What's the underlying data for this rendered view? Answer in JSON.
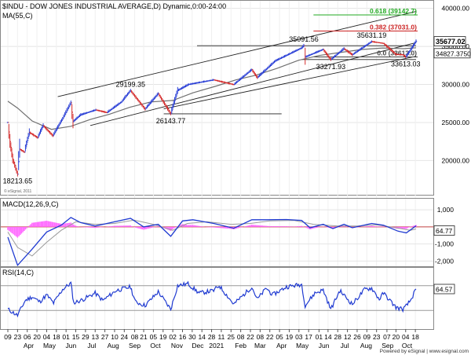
{
  "chart_data": [
    {
      "type": "line",
      "title": "$INDU - DOW JONES INDUSTRIAL AVERAGE,D) Dynamic,0:00-24:00",
      "overlay_label": "MA(55,C)",
      "watermark": "© eSignal, 2011",
      "ylim": [
        15500,
        41000
      ],
      "y_ticks": [
        20000,
        25000,
        30000,
        35000,
        40000
      ],
      "y_tick_labels": [
        "20000.00",
        "25000.00",
        "30000.00",
        "35000.00",
        "40000.00"
      ],
      "price_points": [
        [
          "2020-03-09",
          25000
        ],
        [
          "2020-03-12",
          22500
        ],
        [
          "2020-03-16",
          20200
        ],
        [
          "2020-03-23",
          18213.65
        ],
        [
          "2020-03-26",
          21500
        ],
        [
          "2020-04-02",
          21100
        ],
        [
          "2020-04-09",
          23700
        ],
        [
          "2020-04-21",
          23000
        ],
        [
          "2020-04-29",
          24600
        ],
        [
          "2020-05-13",
          23250
        ],
        [
          "2020-05-27",
          25500
        ],
        [
          "2020-06-08",
          27600
        ],
        [
          "2020-06-11",
          25100
        ],
        [
          "2020-06-22",
          26000
        ],
        [
          "2020-07-14",
          26650
        ],
        [
          "2020-07-30",
          26300
        ],
        [
          "2020-08-20",
          27700
        ],
        [
          "2020-09-02",
          29199.35
        ],
        [
          "2020-09-23",
          26750
        ],
        [
          "2020-10-12",
          28800
        ],
        [
          "2020-10-30",
          26143.77
        ],
        [
          "2020-11-09",
          29200
        ],
        [
          "2020-11-25",
          30000
        ],
        [
          "2020-12-31",
          30600
        ],
        [
          "2021-01-29",
          29980
        ],
        [
          "2021-02-24",
          31950
        ],
        [
          "2021-03-04",
          30900
        ],
        [
          "2021-03-30",
          33100
        ],
        [
          "2021-05-07",
          34800
        ],
        [
          "2021-05-10",
          35091.56
        ],
        [
          "2021-05-12",
          33600
        ],
        [
          "2021-06-07",
          34600
        ],
        [
          "2021-06-18",
          33271.93
        ],
        [
          "2021-07-07",
          34700
        ],
        [
          "2021-07-19",
          33900
        ],
        [
          "2021-08-16",
          35631.19
        ],
        [
          "2021-09-02",
          35400
        ],
        [
          "2021-09-20",
          33950
        ],
        [
          "2021-09-30",
          33900
        ],
        [
          "2021-10-04",
          33613.03
        ],
        [
          "2021-10-11",
          34500
        ],
        [
          "2021-10-19",
          35677.02
        ]
      ],
      "ma_points": [
        [
          "2020-03-09",
          27800
        ],
        [
          "2020-03-23",
          26900
        ],
        [
          "2020-04-13",
          25200
        ],
        [
          "2020-05-11",
          24100
        ],
        [
          "2020-06-08",
          24500
        ],
        [
          "2020-07-06",
          25400
        ],
        [
          "2020-08-03",
          26100
        ],
        [
          "2020-09-01",
          27000
        ],
        [
          "2020-10-01",
          27700
        ],
        [
          "2020-11-02",
          27900
        ],
        [
          "2020-12-01",
          28900
        ],
        [
          "2021-01-04",
          29800
        ],
        [
          "2021-02-01",
          30600
        ],
        [
          "2021-03-01",
          31200
        ],
        [
          "2021-04-01",
          32100
        ],
        [
          "2021-05-03",
          33200
        ],
        [
          "2021-06-01",
          33800
        ],
        [
          "2021-07-01",
          34200
        ],
        [
          "2021-08-02",
          34600
        ],
        [
          "2021-09-01",
          34800
        ],
        [
          "2021-10-01",
          34700
        ],
        [
          "2021-10-19",
          34827.38
        ]
      ],
      "trend_lines": [
        {
          "role": "channel-upper",
          "points": [
            [
              "2020-05-20",
              28400
            ],
            [
              "2021-10-19",
              39600
            ]
          ]
        },
        {
          "role": "channel-lower",
          "points": [
            [
              "2020-07-06",
              24600
            ],
            [
              "2021-10-19",
              35500
            ]
          ]
        },
        {
          "role": "channel-mid",
          "points": [
            [
              "2020-10-20",
              26800
            ],
            [
              "2021-10-19",
              33700
            ]
          ]
        },
        {
          "role": "horizontal",
          "points": [
            [
              "2020-10-20",
              26143.77
            ],
            [
              "2021-04-08",
              26143.77
            ]
          ]
        },
        {
          "role": "horizontal",
          "points": [
            [
              "2020-12-07",
              35091.56
            ],
            [
              "2021-10-19",
              35091.56
            ]
          ]
        },
        {
          "role": "horizontal",
          "points": [
            [
              "2021-05-07",
              33271.93
            ],
            [
              "2021-10-19",
              33271.93
            ]
          ]
        }
      ],
      "fib_levels": [
        {
          "label": "0.618 (39142.7)",
          "value": 39142.7,
          "color": "#22aa22"
        },
        {
          "label": "0.382 (37031.0)",
          "value": 37031.0,
          "color": "#cc2222"
        },
        {
          "label": "0.0 (33613.0)",
          "value": 33613.0,
          "color": "#444444"
        }
      ],
      "annotations": [
        {
          "text": "18213.65",
          "date": "2020-03-23",
          "value": 18213.65,
          "anchor": "below"
        },
        {
          "text": "29199.35",
          "date": "2020-09-02",
          "value": 29199.35,
          "anchor": "above"
        },
        {
          "text": "26143.77",
          "date": "2020-10-30",
          "value": 26143.77,
          "anchor": "below"
        },
        {
          "text": "35091.56",
          "date": "2021-05-10",
          "value": 35091.56,
          "anchor": "above"
        },
        {
          "text": "33271.93",
          "date": "2021-06-18",
          "value": 33271.93,
          "anchor": "below"
        },
        {
          "text": "35631.19",
          "date": "2021-08-16",
          "value": 35631.19,
          "anchor": "above"
        },
        {
          "text": "33613.03",
          "date": "2021-10-04",
          "value": 33613.03,
          "anchor": "below"
        }
      ],
      "last_value_tags": [
        {
          "text": "35677.02",
          "value": 35677.02
        },
        {
          "text": "34827.3750",
          "value": 34827.375
        }
      ]
    },
    {
      "type": "line",
      "title": "MACD(12,26,9,C)",
      "ylim": [
        -2350,
        1650
      ],
      "y_ticks": [
        1000,
        -1000,
        -2000
      ],
      "y_tick_labels": [
        "1,000",
        "-1,000",
        "-2,000"
      ],
      "zero_line": 0,
      "macd_points": [
        [
          "2020-03-09",
          -600
        ],
        [
          "2020-03-23",
          -2250
        ],
        [
          "2020-04-13",
          -1300
        ],
        [
          "2020-05-04",
          -300
        ],
        [
          "2020-05-25",
          100
        ],
        [
          "2020-06-08",
          550
        ],
        [
          "2020-06-22",
          250
        ],
        [
          "2020-07-13",
          50
        ],
        [
          "2020-08-10",
          300
        ],
        [
          "2020-09-02",
          500
        ],
        [
          "2020-09-21",
          0
        ],
        [
          "2020-10-12",
          150
        ],
        [
          "2020-10-30",
          -550
        ],
        [
          "2020-11-16",
          350
        ],
        [
          "2020-12-01",
          420
        ],
        [
          "2020-12-31",
          200
        ],
        [
          "2021-01-29",
          -80
        ],
        [
          "2021-02-24",
          420
        ],
        [
          "2021-03-17",
          420
        ],
        [
          "2021-04-15",
          430
        ],
        [
          "2021-05-07",
          380
        ],
        [
          "2021-05-19",
          -50
        ],
        [
          "2021-06-07",
          150
        ],
        [
          "2021-06-21",
          -100
        ],
        [
          "2021-07-07",
          150
        ],
        [
          "2021-07-19",
          -50
        ],
        [
          "2021-08-16",
          200
        ],
        [
          "2021-09-02",
          100
        ],
        [
          "2021-09-23",
          -250
        ],
        [
          "2021-10-05",
          -350
        ],
        [
          "2021-10-19",
          64.77
        ]
      ],
      "signal_points": [
        [
          "2020-03-09",
          -300
        ],
        [
          "2020-03-23",
          -1200
        ],
        [
          "2020-04-13",
          -1700
        ],
        [
          "2020-05-04",
          -900
        ],
        [
          "2020-05-25",
          -200
        ],
        [
          "2020-06-15",
          300
        ],
        [
          "2020-07-13",
          150
        ],
        [
          "2020-08-10",
          200
        ],
        [
          "2020-09-07",
          400
        ],
        [
          "2020-10-05",
          150
        ],
        [
          "2020-11-02",
          -200
        ],
        [
          "2020-11-23",
          200
        ],
        [
          "2020-12-21",
          300
        ],
        [
          "2021-01-25",
          150
        ],
        [
          "2021-02-22",
          200
        ],
        [
          "2021-03-22",
          350
        ],
        [
          "2021-04-26",
          380
        ],
        [
          "2021-05-24",
          150
        ],
        [
          "2021-06-28",
          50
        ],
        [
          "2021-07-26",
          50
        ],
        [
          "2021-08-23",
          120
        ],
        [
          "2021-09-20",
          -50
        ],
        [
          "2021-10-11",
          -200
        ],
        [
          "2021-10-19",
          -120
        ]
      ],
      "current_value_tag": "64.77"
    },
    {
      "type": "line",
      "title": "RSI(14,C)",
      "ylim": [
        0,
        100
      ],
      "reference_lines": [
        70,
        30
      ],
      "rsi_points": [
        [
          "2020-03-09",
          32
        ],
        [
          "2020-03-23",
          22
        ],
        [
          "2020-04-03",
          46
        ],
        [
          "2020-04-13",
          52
        ],
        [
          "2020-04-24",
          44
        ],
        [
          "2020-05-04",
          55
        ],
        [
          "2020-05-14",
          42
        ],
        [
          "2020-05-27",
          64
        ],
        [
          "2020-06-08",
          74
        ],
        [
          "2020-06-12",
          42
        ],
        [
          "2020-06-26",
          48
        ],
        [
          "2020-07-13",
          58
        ],
        [
          "2020-07-24",
          46
        ],
        [
          "2020-08-12",
          62
        ],
        [
          "2020-09-02",
          68
        ],
        [
          "2020-09-09",
          44
        ],
        [
          "2020-09-23",
          38
        ],
        [
          "2020-10-12",
          60
        ],
        [
          "2020-10-30",
          32
        ],
        [
          "2020-11-09",
          70
        ],
        [
          "2020-11-24",
          73
        ],
        [
          "2020-12-10",
          58
        ],
        [
          "2020-12-31",
          62
        ],
        [
          "2021-01-08",
          70
        ],
        [
          "2021-01-29",
          40
        ],
        [
          "2021-02-24",
          68
        ],
        [
          "2021-03-04",
          48
        ],
        [
          "2021-03-17",
          66
        ],
        [
          "2021-03-26",
          55
        ],
        [
          "2021-04-15",
          68
        ],
        [
          "2021-05-07",
          72
        ],
        [
          "2021-05-12",
          38
        ],
        [
          "2021-05-26",
          58
        ],
        [
          "2021-06-07",
          63
        ],
        [
          "2021-06-18",
          32
        ],
        [
          "2021-07-01",
          62
        ],
        [
          "2021-07-19",
          40
        ],
        [
          "2021-08-06",
          64
        ],
        [
          "2021-08-16",
          66
        ],
        [
          "2021-08-27",
          48
        ],
        [
          "2021-09-02",
          58
        ],
        [
          "2021-09-20",
          35
        ],
        [
          "2021-09-30",
          32
        ],
        [
          "2021-10-04",
          36
        ],
        [
          "2021-10-11",
          46
        ],
        [
          "2021-10-19",
          64.57
        ]
      ],
      "current_value_tag": "64.57"
    }
  ],
  "x_axis": {
    "day_ticks": [
      [
        "2020-03-09",
        "09"
      ],
      [
        "2020-03-23",
        "23"
      ],
      [
        "2020-04-06",
        "06"
      ],
      [
        "2020-04-20",
        "20"
      ],
      [
        "2020-05-04",
        "04"
      ],
      [
        "2020-05-18",
        "18"
      ],
      [
        "2020-06-01",
        "01"
      ],
      [
        "2020-06-15",
        "15"
      ],
      [
        "2020-06-29",
        "29"
      ],
      [
        "2020-07-13",
        "13"
      ],
      [
        "2020-07-27",
        "27"
      ],
      [
        "2020-08-10",
        "10"
      ],
      [
        "2020-08-24",
        "24"
      ],
      [
        "2020-09-08",
        "08"
      ],
      [
        "2020-09-21",
        "21"
      ],
      [
        "2020-10-05",
        "05"
      ],
      [
        "2020-10-19",
        "19"
      ],
      [
        "2020-11-02",
        "02"
      ],
      [
        "2020-11-16",
        "16"
      ],
      [
        "2020-11-30",
        "30"
      ],
      [
        "2020-12-14",
        "14"
      ],
      [
        "2020-12-28",
        "28"
      ],
      [
        "2021-01-11",
        "11"
      ],
      [
        "2021-01-25",
        "25"
      ],
      [
        "2021-02-08",
        "08"
      ],
      [
        "2021-02-22",
        "22"
      ],
      [
        "2021-03-08",
        "08"
      ],
      [
        "2021-03-22",
        "22"
      ],
      [
        "2021-04-05",
        "05"
      ],
      [
        "2021-04-19",
        "19"
      ],
      [
        "2021-05-03",
        "03"
      ],
      [
        "2021-05-17",
        "17"
      ],
      [
        "2021-06-01",
        "01"
      ],
      [
        "2021-06-14",
        "14"
      ],
      [
        "2021-06-28",
        "28"
      ],
      [
        "2021-07-12",
        "12"
      ],
      [
        "2021-07-26",
        "26"
      ],
      [
        "2021-08-09",
        "09"
      ],
      [
        "2021-08-23",
        "23"
      ],
      [
        "2021-09-07",
        "07"
      ],
      [
        "2021-09-20",
        "20"
      ],
      [
        "2021-10-04",
        "04"
      ],
      [
        "2021-10-18",
        "18"
      ]
    ],
    "month_labels": [
      [
        "2020-04-08",
        "Apr"
      ],
      [
        "2020-05-08",
        "May"
      ],
      [
        "2020-06-08",
        "Jun"
      ],
      [
        "2020-07-08",
        "Jul"
      ],
      [
        "2020-08-08",
        "Aug"
      ],
      [
        "2020-09-08",
        "Sep"
      ],
      [
        "2020-10-08",
        "Oct"
      ],
      [
        "2020-11-08",
        "Nov"
      ],
      [
        "2020-12-08",
        "Dec"
      ],
      [
        "2021-01-04",
        "2021"
      ],
      [
        "2021-02-08",
        "Feb"
      ],
      [
        "2021-03-08",
        "Mar"
      ],
      [
        "2021-04-08",
        "Apr"
      ],
      [
        "2021-05-08",
        "May"
      ],
      [
        "2021-06-08",
        "Jun"
      ],
      [
        "2021-07-08",
        "Jul"
      ],
      [
        "2021-08-08",
        "Aug"
      ],
      [
        "2021-09-08",
        "Sep"
      ],
      [
        "2021-10-06",
        "Oct"
      ]
    ],
    "footer_text": "Powered by eSignal | www.esignal.com"
  },
  "colors": {
    "price_up": "#2a3fd6",
    "price_down": "#d42a2a",
    "ma": "#707070",
    "macd": "#1f3ad1",
    "signal": "#9a9a9a",
    "histogram": "#ff6bff",
    "rsi": "#1f3ad1",
    "trend": "#222222",
    "reference": "#999999",
    "grid": "#e4e4e4",
    "tag_bg": "#ffffff"
  }
}
